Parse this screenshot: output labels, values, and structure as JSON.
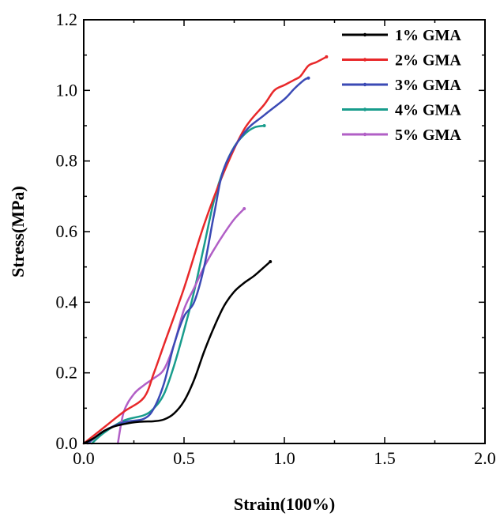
{
  "chart_data": {
    "type": "line",
    "xlabel": "Strain(100%)",
    "ylabel": "Stress(MPa)",
    "xlim": [
      0.0,
      2.0
    ],
    "ylim": [
      0.0,
      1.2
    ],
    "xticks": [
      "0.0",
      "0.5",
      "1.0",
      "1.5",
      "2.0"
    ],
    "yticks": [
      "0.0",
      "0.2",
      "0.4",
      "0.6",
      "0.8",
      "1.0",
      "1.2"
    ],
    "legend_position": "top-right",
    "series": [
      {
        "name": "1% GMA",
        "color": "#000000",
        "x": [
          0.0,
          0.05,
          0.1,
          0.15,
          0.2,
          0.25,
          0.3,
          0.35,
          0.4,
          0.45,
          0.5,
          0.55,
          0.6,
          0.65,
          0.7,
          0.75,
          0.8,
          0.85,
          0.9,
          0.93
        ],
        "y": [
          0.0,
          0.015,
          0.035,
          0.048,
          0.055,
          0.06,
          0.062,
          0.063,
          0.068,
          0.085,
          0.12,
          0.18,
          0.26,
          0.33,
          0.39,
          0.43,
          0.455,
          0.475,
          0.5,
          0.515
        ]
      },
      {
        "name": "2% GMA",
        "color": "#e8282a",
        "x": [
          0.0,
          0.1,
          0.2,
          0.3,
          0.35,
          0.4,
          0.5,
          0.6,
          0.7,
          0.8,
          0.9,
          0.95,
          1.0,
          1.05,
          1.08,
          1.12,
          1.16,
          1.21
        ],
        "y": [
          0.0,
          0.045,
          0.09,
          0.13,
          0.2,
          0.28,
          0.44,
          0.62,
          0.77,
          0.89,
          0.96,
          1.0,
          1.015,
          1.03,
          1.04,
          1.07,
          1.08,
          1.095
        ]
      },
      {
        "name": "3% GMA",
        "color": "#3b4ab5",
        "x": [
          0.02,
          0.1,
          0.2,
          0.3,
          0.35,
          0.4,
          0.45,
          0.5,
          0.55,
          0.6,
          0.65,
          0.7,
          0.8,
          0.9,
          1.0,
          1.05,
          1.1,
          1.12
        ],
        "y": [
          0.0,
          0.035,
          0.06,
          0.07,
          0.1,
          0.17,
          0.28,
          0.36,
          0.4,
          0.5,
          0.65,
          0.78,
          0.88,
          0.93,
          0.975,
          1.005,
          1.03,
          1.035
        ]
      },
      {
        "name": "4% GMA",
        "color": "#189c8c",
        "x": [
          0.04,
          0.1,
          0.2,
          0.3,
          0.35,
          0.4,
          0.45,
          0.5,
          0.55,
          0.6,
          0.65,
          0.7,
          0.75,
          0.8,
          0.85,
          0.9
        ],
        "y": [
          0.0,
          0.03,
          0.065,
          0.08,
          0.1,
          0.14,
          0.22,
          0.32,
          0.43,
          0.56,
          0.69,
          0.78,
          0.84,
          0.875,
          0.895,
          0.9
        ]
      },
      {
        "name": "5% GMA",
        "color": "#b15fc6",
        "x": [
          0.17,
          0.2,
          0.25,
          0.3,
          0.35,
          0.4,
          0.45,
          0.5,
          0.55,
          0.6,
          0.65,
          0.7,
          0.75,
          0.8
        ],
        "y": [
          0.0,
          0.09,
          0.14,
          0.165,
          0.185,
          0.21,
          0.28,
          0.38,
          0.44,
          0.5,
          0.55,
          0.595,
          0.635,
          0.665
        ]
      }
    ]
  }
}
